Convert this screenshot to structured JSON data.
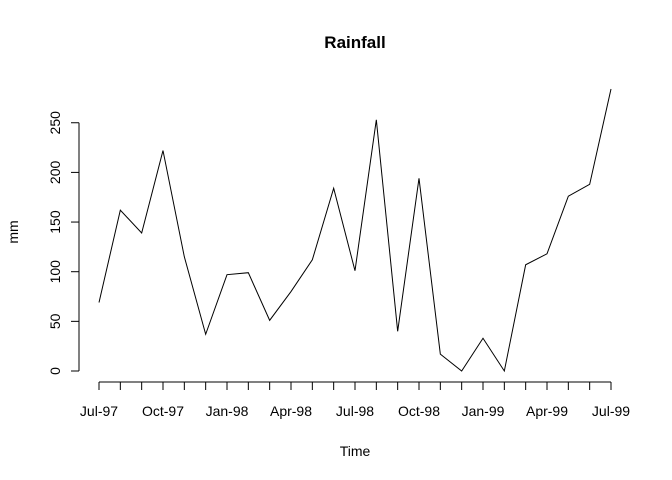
{
  "chart_data": {
    "type": "line",
    "title": "Rainfall",
    "xlabel": "Time",
    "ylabel": "mm",
    "x": [
      "Jul-97",
      "Aug-97",
      "Sep-97",
      "Oct-97",
      "Nov-97",
      "Dec-97",
      "Jan-98",
      "Feb-98",
      "Mar-98",
      "Apr-98",
      "May-98",
      "Jun-98",
      "Jul-98",
      "Aug-98",
      "Sep-98",
      "Oct-98",
      "Nov-98",
      "Dec-98",
      "Jan-99",
      "Feb-99",
      "Mar-99",
      "Apr-99",
      "May-99",
      "Jun-99",
      "Jul-99"
    ],
    "series": [
      {
        "values": [
          69,
          162,
          139,
          222,
          115,
          37,
          97,
          99,
          51,
          80,
          112,
          184,
          101,
          253,
          40,
          194,
          17,
          0,
          33,
          0,
          107,
          118,
          176,
          188,
          284
        ]
      }
    ],
    "x_tick_labels": [
      "Jul-97",
      "Oct-97",
      "Jan-98",
      "Apr-98",
      "Jul-98",
      "Oct-98",
      "Jan-99",
      "Apr-99",
      "Jul-99"
    ],
    "x_tick_label_indices": [
      0,
      3,
      6,
      9,
      12,
      15,
      18,
      21,
      24
    ],
    "y_ticks": [
      0,
      50,
      100,
      150,
      200,
      250
    ],
    "ylim": [
      0,
      284
    ],
    "grid": false,
    "legend": "none"
  }
}
